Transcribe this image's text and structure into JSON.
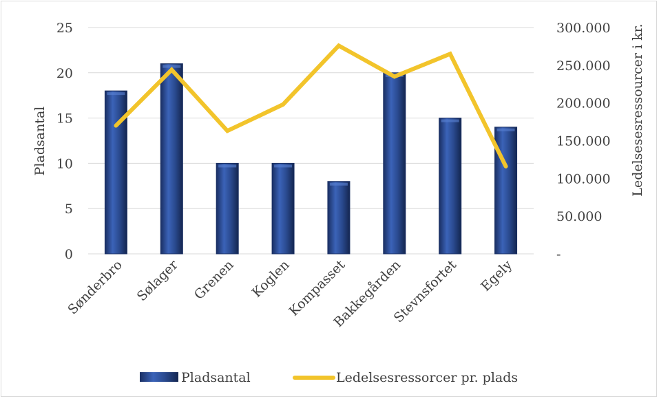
{
  "chart_data": {
    "type": "bar",
    "categories": [
      "Sønderbro",
      "Sølager",
      "Grenen",
      "Koglen",
      "Kompasset",
      "Bakkegården",
      "Stevnsfortet",
      "Egely"
    ],
    "series": [
      {
        "name": "Pladsantal",
        "type": "bar",
        "axis": "left",
        "values": [
          18,
          21,
          10,
          10,
          8,
          20,
          15,
          14
        ]
      },
      {
        "name": "Ledelsesressorcer pr. plads",
        "type": "line",
        "axis": "right",
        "values": [
          170000,
          244000,
          163000,
          198000,
          276000,
          235000,
          265000,
          116000
        ]
      }
    ],
    "left_axis": {
      "label": "Pladsantal",
      "ylim": [
        0,
        25
      ],
      "ticks": [
        "0",
        "5",
        "10",
        "15",
        "20",
        "25"
      ]
    },
    "right_axis": {
      "label": "Ledelsesesressourcer i kr.",
      "ylim": [
        0,
        300000
      ],
      "ticks": [
        "-",
        "50.000",
        "100.000",
        "150.000",
        "200.000",
        "250.000",
        "300.000"
      ]
    },
    "grid": true,
    "legend": "bottom",
    "colors": {
      "bar": "#2a4a8f",
      "bar_dark": "#1a2f63",
      "line": "#f2c42b",
      "grid": "#d9d9d9"
    }
  }
}
